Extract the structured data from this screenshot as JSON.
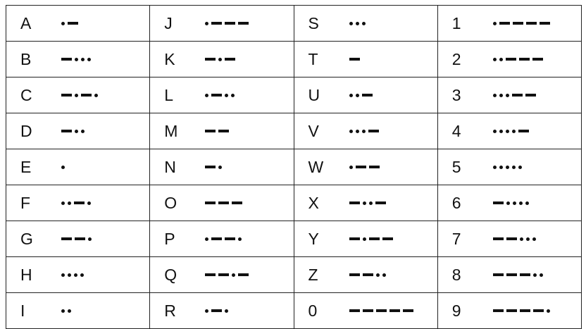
{
  "columns": [
    [
      {
        "char": "A",
        "code": ".-"
      },
      {
        "char": "B",
        "code": "-..."
      },
      {
        "char": "C",
        "code": "-.-."
      },
      {
        "char": "D",
        "code": "-.."
      },
      {
        "char": "E",
        "code": "."
      },
      {
        "char": "F",
        "code": "..-."
      },
      {
        "char": "G",
        "code": "--."
      },
      {
        "char": "H",
        "code": "...."
      },
      {
        "char": "I",
        "code": ".."
      }
    ],
    [
      {
        "char": "J",
        "code": ".---"
      },
      {
        "char": "K",
        "code": "-.-"
      },
      {
        "char": "L",
        "code": ".-.."
      },
      {
        "char": "M",
        "code": "--"
      },
      {
        "char": "N",
        "code": "-."
      },
      {
        "char": "O",
        "code": "---"
      },
      {
        "char": "P",
        "code": ".--."
      },
      {
        "char": "Q",
        "code": "--.-"
      },
      {
        "char": "R",
        "code": ".-."
      }
    ],
    [
      {
        "char": "S",
        "code": "..."
      },
      {
        "char": "T",
        "code": "-"
      },
      {
        "char": "U",
        "code": "..-"
      },
      {
        "char": "V",
        "code": "...-"
      },
      {
        "char": "W",
        "code": ".--"
      },
      {
        "char": "X",
        "code": "-..-"
      },
      {
        "char": "Y",
        "code": "-.--"
      },
      {
        "char": "Z",
        "code": "--.."
      },
      {
        "char": "0",
        "code": "-----"
      }
    ],
    [
      {
        "char": "1",
        "code": ".----"
      },
      {
        "char": "2",
        "code": "..---"
      },
      {
        "char": "3",
        "code": "...--"
      },
      {
        "char": "4",
        "code": "....-"
      },
      {
        "char": "5",
        "code": "....."
      },
      {
        "char": "6",
        "code": "-...."
      },
      {
        "char": "7",
        "code": "--..."
      },
      {
        "char": "8",
        "code": "---.."
      },
      {
        "char": "9",
        "code": "----."
      }
    ]
  ]
}
